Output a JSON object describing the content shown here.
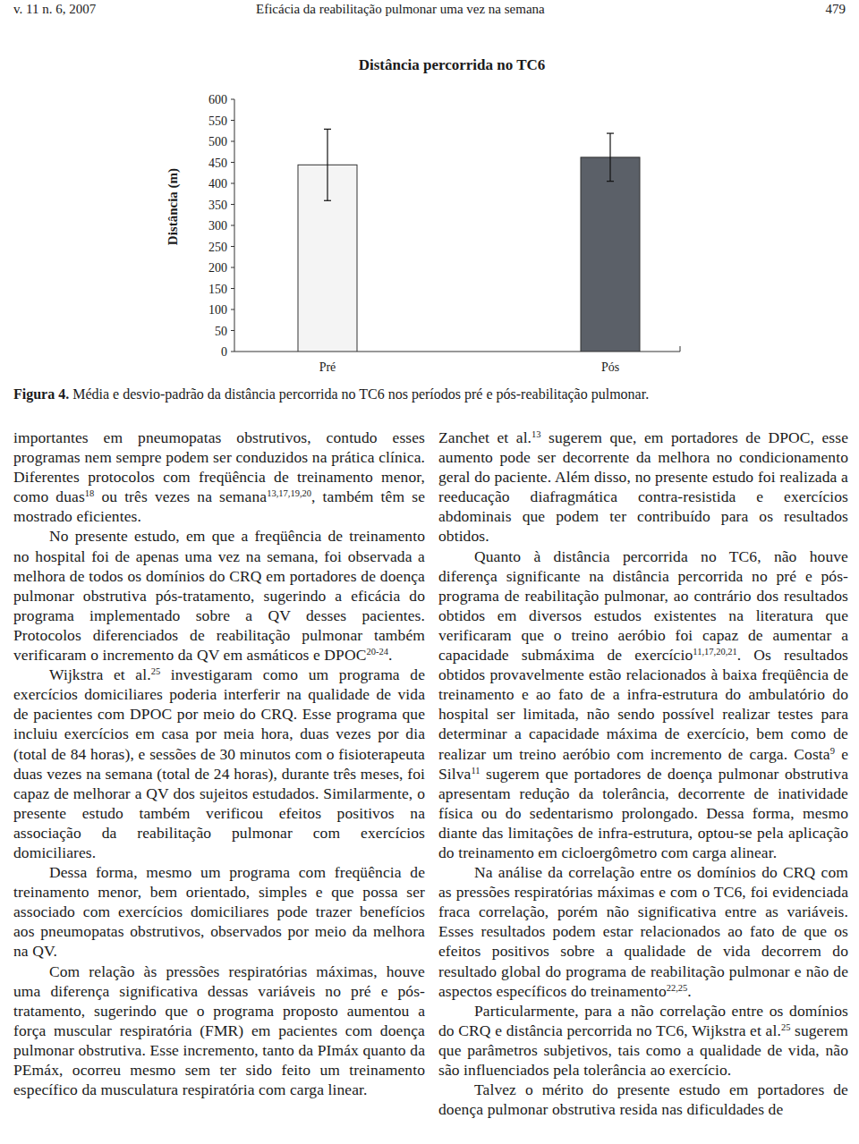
{
  "header": {
    "left": "v. 11 n. 6, 2007",
    "center": "Eficácia da reabilitação pulmonar uma vez na semana",
    "right": "479"
  },
  "chart_data": {
    "type": "bar",
    "title": "Distância percorrida no TC6",
    "y_label": "Distância (m)",
    "categories": [
      "Pré",
      "Pós"
    ],
    "values": [
      444,
      462
    ],
    "errors": [
      85,
      57
    ],
    "colors": [
      "#f4f4f4",
      "#5b6068"
    ],
    "ylim": [
      0,
      600
    ],
    "yticks": [
      0,
      50,
      100,
      150,
      200,
      250,
      300,
      350,
      400,
      450,
      500,
      550,
      600
    ]
  },
  "caption": {
    "label": "Figura 4.",
    "text": "Média e desvio-padrão da distância percorrida no TC6 nos períodos pré e pós-reabilitação pulmonar."
  },
  "columns": [
    {
      "paragraphs": [
        [
          "importantes em pneumopatas obstrutivos, contudo esses programas nem sempre podem ser conduzidos na prática clínica. Diferentes protocolos com freqüência de treinamento menor, como duas",
          {
            "sup": "18"
          },
          " ou três vezes na semana",
          {
            "sup": "13,17,19,20"
          },
          ", também têm se mostrado eficientes."
        ],
        [
          "No presente estudo, em que a freqüência de treinamento no hospital foi de apenas uma vez na semana, foi observada a melhora de todos os domínios do CRQ em portadores de doença pulmonar obstrutiva pós-tratamento, sugerindo a eficácia do programa implementado sobre a QV desses pacientes. Protocolos diferenciados de reabilitação pulmonar também verificaram o incremento da QV em asmáticos e DPOC",
          {
            "sup": "20-24"
          },
          "."
        ],
        [
          "Wijkstra et al.",
          {
            "sup": "25"
          },
          " investigaram como um programa de exercícios domiciliares poderia interferir na qualidade de vida de pacientes com DPOC por meio do CRQ. Esse programa que incluiu exercícios em casa por meia hora, duas vezes por dia (total de 84 horas), e sessões de 30 minutos com o fisioterapeuta duas vezes na semana (total de 24 horas), durante três meses, foi capaz de melhorar a QV dos sujeitos estudados. Similarmente, o presente estudo também verificou efeitos positivos na associação da reabilitação pulmonar com exercícios domiciliares."
        ],
        [
          "Dessa forma, mesmo um programa com freqüência de treinamento menor, bem orientado, simples e que possa ser associado com exercícios domiciliares pode trazer benefícios aos pneumopatas obstrutivos, observados por meio da melhora na QV."
        ],
        [
          "Com relação às pressões respiratórias máximas, houve uma diferença significativa dessas variáveis no pré e pós-tratamento, sugerindo que o programa proposto aumentou a força muscular respiratória (FMR) em pacientes com doença pulmonar obstrutiva. Esse incremento, tanto da PImáx quanto da PEmáx, ocorreu mesmo sem ter sido feito um treinamento específico da musculatura respiratória com carga linear."
        ]
      ]
    },
    {
      "paragraphs": [
        [
          "Zanchet et al.",
          {
            "sup": "13"
          },
          " sugerem que, em portadores de DPOC, esse aumento pode ser decorrente da melhora no condicionamento geral do paciente. Além disso, no presente estudo foi realizada a reeducação diafragmática contra-resistida e exercícios abdominais que podem ter contribuído para os resultados obtidos."
        ],
        [
          "Quanto à distância percorrida no TC6, não houve diferença significante na distância percorrida no pré e pós-programa de reabilitação pulmonar, ao contrário dos resultados obtidos em diversos estudos existentes na literatura que verificaram que o treino aeróbio foi capaz de aumentar a capacidade submáxima de exercício",
          {
            "sup": "11,17,20,21"
          },
          ". Os resultados obtidos provavelmente estão relacionados à baixa freqüência de treinamento e ao fato de a infra-estrutura do ambulatório do hospital ser limitada, não sendo possível realizar testes para determinar a capacidade máxima de exercício, bem como de realizar um treino aeróbio com incremento de carga. Costa",
          {
            "sup": "9"
          },
          " e Silva",
          {
            "sup": "11"
          },
          " sugerem que portadores de doença pulmonar obstrutiva apresentam redução da tolerância, decorrente de inatividade física ou do sedentarismo prolongado. Dessa forma, mesmo diante das limitações de infra-estrutura, optou-se pela aplicação do treinamento em cicloergômetro com carga alinear."
        ],
        [
          "Na análise da correlação entre os domínios do CRQ com as pressões respiratórias máximas e com o TC6, foi evidenciada fraca correlação, porém não significativa entre as variáveis. Esses resultados podem estar relacionados ao fato de que os efeitos positivos sobre a qualidade de vida decorrem do resultado global do programa de reabilitação pulmonar e não de aspectos específicos do treinamento",
          {
            "sup": "22,25"
          },
          "."
        ],
        [
          "Particularmente, para a não correlação entre os domínios do CRQ e distância percorrida no TC6, Wijkstra et al.",
          {
            "sup": "25"
          },
          " sugerem que parâmetros subjetivos, tais como a qualidade de vida, não são influenciados pela tolerância ao exercício."
        ],
        [
          "Talvez o mérito do presente estudo em portadores de doença pulmonar obstrutiva resida nas dificuldades de"
        ]
      ]
    }
  ]
}
